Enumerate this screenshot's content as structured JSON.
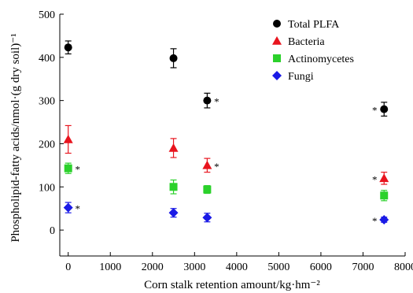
{
  "chart_data": {
    "type": "scatter",
    "xlabel": "Corn stalk retention amount/kg·hm⁻²",
    "ylabel": "Phospholipid-fatty acids/nmol·(g dry soil)⁻¹",
    "xlim": [
      -200,
      8000
    ],
    "ylim": [
      -60,
      500
    ],
    "x_ticks": [
      0,
      1000,
      2000,
      3000,
      4000,
      5000,
      6000,
      7000,
      8000
    ],
    "y_ticks": [
      0,
      100,
      200,
      300,
      400,
      500
    ],
    "x_tick_labels": [
      "0",
      "1000",
      "2000",
      "3000",
      "4000",
      "5000",
      "6000",
      "7000",
      "8000"
    ],
    "y_tick_labels": [
      "0",
      "100",
      "200",
      "300",
      "400",
      "500"
    ],
    "grid": false,
    "legend_position": "top-right",
    "series": [
      {
        "name": "Total PLFA",
        "color": "#000000",
        "marker": "circle",
        "x": [
          0,
          2500,
          3300,
          7500
        ],
        "y": [
          423,
          398,
          300,
          280
        ],
        "err": [
          15,
          22,
          17,
          16
        ],
        "significance": [
          "",
          "",
          "right",
          "left"
        ]
      },
      {
        "name": "Bacteria",
        "color": "#e8141e",
        "marker": "triangle",
        "x": [
          0,
          2500,
          3300,
          7500
        ],
        "y": [
          210,
          190,
          150,
          120
        ],
        "err": [
          32,
          22,
          16,
          14
        ],
        "significance": [
          "",
          "",
          "right",
          "left"
        ]
      },
      {
        "name": "Actinomycetes",
        "color": "#2bd12b",
        "marker": "square",
        "x": [
          0,
          2500,
          3300,
          7500
        ],
        "y": [
          143,
          100,
          94,
          80
        ],
        "err": [
          12,
          16,
          9,
          12
        ],
        "significance": [
          "right",
          "",
          "",
          ""
        ]
      },
      {
        "name": "Fungi",
        "color": "#1a1ae6",
        "marker": "diamond",
        "x": [
          0,
          2500,
          3300,
          7500
        ],
        "y": [
          52,
          40,
          29,
          24
        ],
        "err": [
          12,
          10,
          10,
          6
        ],
        "significance": [
          "right",
          "",
          "",
          "left"
        ]
      }
    ],
    "significance_symbol": "*"
  }
}
